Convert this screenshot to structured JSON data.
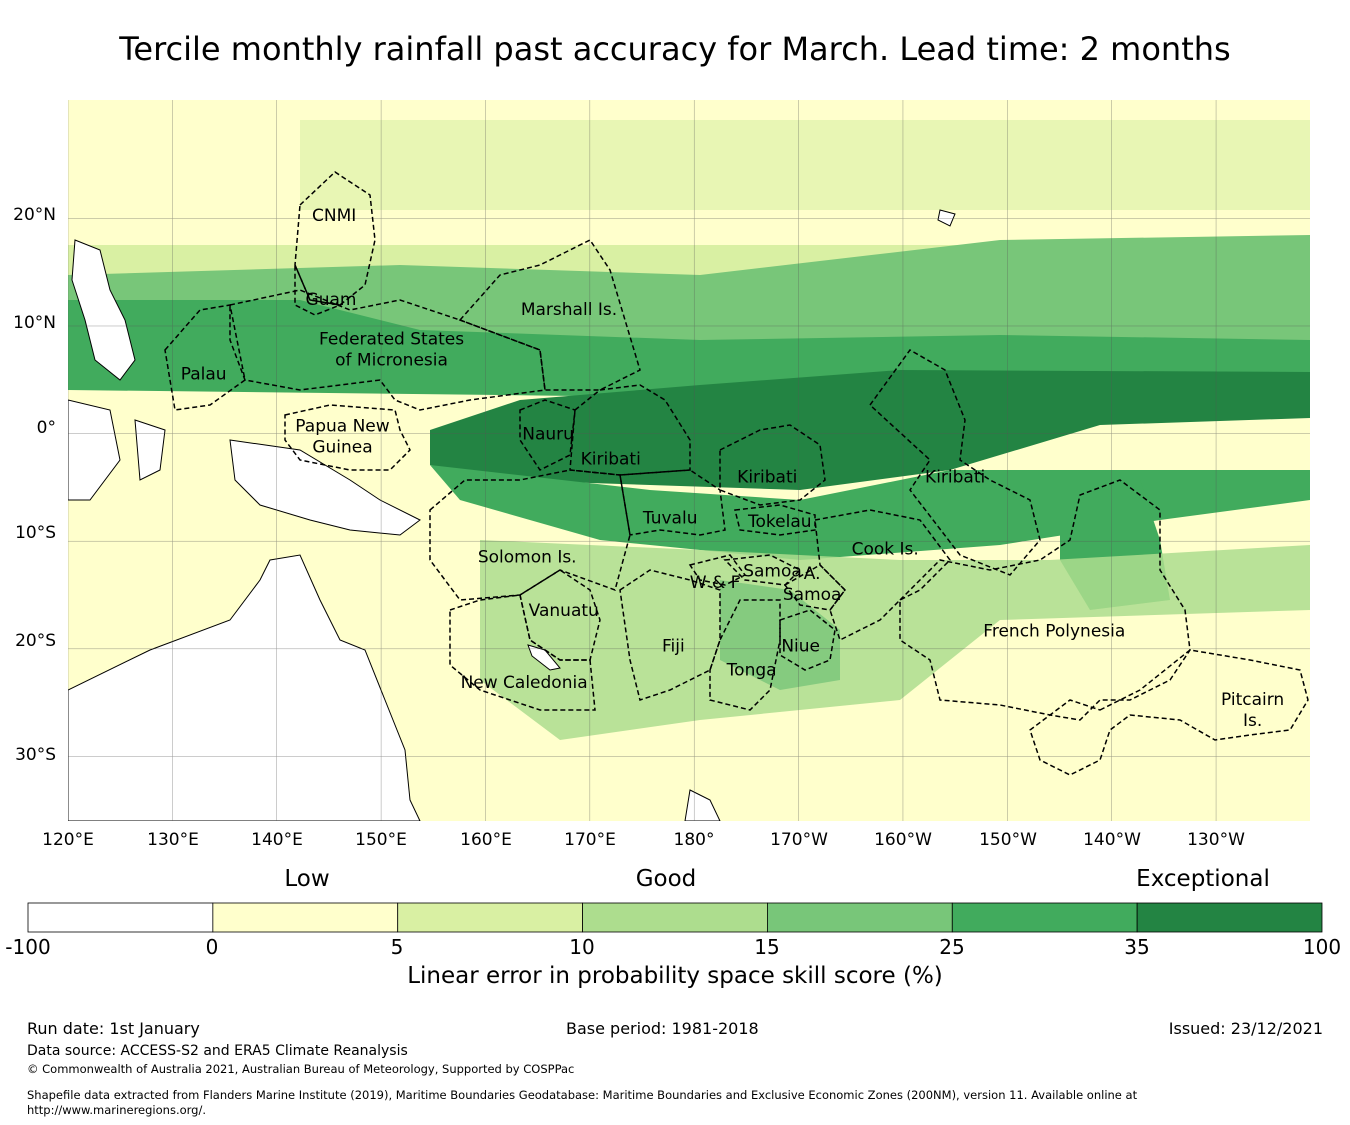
{
  "title": "Tercile monthly rainfall past accuracy for March. Lead time: 2 months",
  "map": {
    "lat_labels": [
      "20°N",
      "10°N",
      "0°",
      "10°S",
      "20°S",
      "30°S"
    ],
    "lat_values": [
      20,
      10,
      0,
      -10,
      -20,
      -30
    ],
    "lon_labels": [
      "120°E",
      "130°E",
      "140°E",
      "150°E",
      "160°E",
      "170°E",
      "180°",
      "170°W",
      "160°W",
      "150°W",
      "140°W",
      "130°W"
    ],
    "lon_values": [
      120,
      130,
      140,
      150,
      160,
      170,
      180,
      190,
      200,
      210,
      220,
      230
    ],
    "extent": {
      "lon_min": 120,
      "lon_max": 239,
      "lat_min": -36,
      "lat_max": 31
    },
    "regions": [
      {
        "name": "CNMI",
        "lines": [
          "CNMI"
        ],
        "lon": 145.5,
        "lat": 20.3
      },
      {
        "name": "Guam",
        "lines": [
          "Guam"
        ],
        "lon": 145.2,
        "lat": 12.5
      },
      {
        "name": "Marshall Is.",
        "lines": [
          "Marshall Is."
        ],
        "lon": 168.0,
        "lat": 11.6
      },
      {
        "name": "Federated States of Micronesia",
        "lines": [
          "Federated States",
          "of Micronesia"
        ],
        "lon": 151.0,
        "lat": 7.9
      },
      {
        "name": "Palau",
        "lines": [
          "Palau"
        ],
        "lon": 133.0,
        "lat": 5.6
      },
      {
        "name": "Papua New Guinea",
        "lines": [
          "Papua New",
          "Guinea"
        ],
        "lon": 146.3,
        "lat": -0.2
      },
      {
        "name": "Nauru",
        "lines": [
          "Nauru"
        ],
        "lon": 166.0,
        "lat": 0.0
      },
      {
        "name": "Kiribati (Gilbert)",
        "lines": [
          "Kiribati"
        ],
        "lon": 172.0,
        "lat": -2.3
      },
      {
        "name": "Kiribati (Phoenix)",
        "lines": [
          "Kiribati"
        ],
        "lon": 187.0,
        "lat": -4.0
      },
      {
        "name": "Kiribati (Line)",
        "lines": [
          "Kiribati"
        ],
        "lon": 205.0,
        "lat": -4.0
      },
      {
        "name": "Tuvalu",
        "lines": [
          "Tuvalu"
        ],
        "lon": 177.7,
        "lat": -7.8
      },
      {
        "name": "Tokelau",
        "lines": [
          "Tokelau"
        ],
        "lon": 188.2,
        "lat": -8.1
      },
      {
        "name": "Solomon Is.",
        "lines": [
          "Solomon Is."
        ],
        "lon": 164.0,
        "lat": -11.4
      },
      {
        "name": "Cook Is.",
        "lines": [
          "Cook Is."
        ],
        "lon": 198.3,
        "lat": -10.7
      },
      {
        "name": "Samoa",
        "lines": [
          "Samoa"
        ],
        "lon": 187.5,
        "lat": -12.7
      },
      {
        "name": "W & F",
        "lines": [
          "W & F"
        ],
        "lon": 182.0,
        "lat": -13.8
      },
      {
        "name": "A. Samoa",
        "lines": [
          "A.",
          "Samoa"
        ],
        "lon": 191.3,
        "lat": -13.9
      },
      {
        "name": "Vanuatu",
        "lines": [
          "Vanuatu"
        ],
        "lon": 167.5,
        "lat": -16.4
      },
      {
        "name": "Fiji",
        "lines": [
          "Fiji"
        ],
        "lon": 178.0,
        "lat": -19.7
      },
      {
        "name": "Niue",
        "lines": [
          "Niue"
        ],
        "lon": 190.2,
        "lat": -19.7
      },
      {
        "name": "Tonga",
        "lines": [
          "Tonga"
        ],
        "lon": 185.5,
        "lat": -21.9
      },
      {
        "name": "French Polynesia",
        "lines": [
          "French Polynesia"
        ],
        "lon": 214.5,
        "lat": -18.3
      },
      {
        "name": "New Caledonia",
        "lines": [
          "New Caledonia"
        ],
        "lon": 163.7,
        "lat": -23.1
      },
      {
        "name": "Pitcairn Is.",
        "lines": [
          "Pitcairn",
          "Is."
        ],
        "lon": 233.5,
        "lat": -25.6
      }
    ]
  },
  "colorbar": {
    "category_labels": [
      "Low",
      "Good",
      "Exceptional"
    ],
    "tick_labels": [
      "-100",
      "0",
      "5",
      "10",
      "15",
      "25",
      "35",
      "100"
    ],
    "colors": [
      "#ffffff",
      "#ffffcc",
      "#d9f0a3",
      "#addd8e",
      "#78c679",
      "#41ab5d",
      "#238443"
    ],
    "label": "Linear error in probability space skill score (%)"
  },
  "footer": {
    "run_date": "Run date: 1st January",
    "base_period": "Base period: 1981-2018",
    "issued": "Issued: 23/12/2021",
    "data_source": "Data source: ACCESS-S2 and ERA5 Climate Reanalysis",
    "copyright": "© Commonwealth of Australia 2021, Australian Bureau of Meteorology, Supported by COSPPac",
    "shapefile_1": "Shapefile data extracted from Flanders Marine Institute (2019), Maritime Boundaries Geodatabase: Maritime Boundaries and Exclusive Economic Zones (200NM), version 11. Available online at",
    "shapefile_2": "http://www.marineregions.org/."
  }
}
